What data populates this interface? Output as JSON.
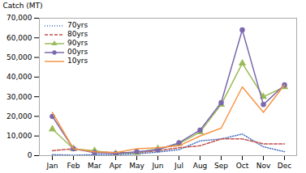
{
  "chart_data": {
    "type": "line",
    "categories": [
      "Jan",
      "Feb",
      "Mar",
      "Apr",
      "May",
      "Jun",
      "Jul",
      "Aug",
      "Sep",
      "Oct",
      "Nov",
      "Dec"
    ],
    "series": [
      {
        "name": "70yrs",
        "color": "#4472C4",
        "line_style": "dotted",
        "values": [
          500,
          200,
          500,
          400,
          900,
          1800,
          3000,
          7500,
          8500,
          11000,
          4500,
          2000
        ]
      },
      {
        "name": "80yrs",
        "color": "#C0504D",
        "line_style": "dashed",
        "values": [
          2500,
          3500,
          2000,
          1500,
          1500,
          2500,
          4000,
          5000,
          8500,
          8500,
          6000,
          6000
        ]
      },
      {
        "name": "90yrs",
        "color": "#9BBB59",
        "line_style": "solid",
        "marker": "triangle",
        "values": [
          13500,
          3500,
          2500,
          1000,
          1500,
          3500,
          6000,
          12000,
          26000,
          47000,
          30000,
          35000
        ]
      },
      {
        "name": "00yrs",
        "color": "#7B68AE",
        "line_style": "solid",
        "marker": "circle",
        "values": [
          20000,
          3500,
          1500,
          1000,
          2000,
          3000,
          6500,
          13000,
          27000,
          64000,
          26000,
          36000
        ]
      },
      {
        "name": "10yrs",
        "color": "#F79646",
        "line_style": "solid",
        "values": [
          22000,
          3500,
          2000,
          1500,
          3500,
          4000,
          5000,
          10000,
          14000,
          35000,
          22000,
          36000
        ]
      }
    ],
    "ylabel": "Catch (MT)",
    "ylim": [
      0,
      70000
    ],
    "yticks": [
      0,
      {
        "value": 10000,
        "label": "10,000"
      },
      {
        "value": 20000,
        "label": "20,000"
      },
      {
        "value": 30000,
        "label": "30,000"
      },
      {
        "value": 40000,
        "label": "40,000"
      },
      {
        "value": 50000,
        "label": "50,000"
      },
      {
        "value": 60000,
        "label": "60,000"
      },
      {
        "value": 70000,
        "label": "70,000"
      }
    ],
    "grid": false,
    "legend": "upper left"
  }
}
